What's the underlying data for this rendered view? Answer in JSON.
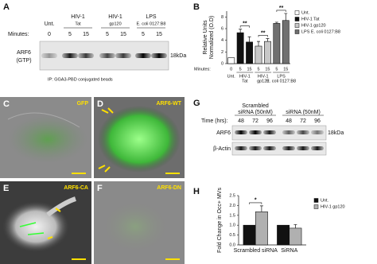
{
  "blot_a": {
    "letter": "A",
    "group_labels": [
      [
        "Unt."
      ],
      [
        "HIV-1",
        "Tat"
      ],
      [
        "HIV-1",
        "gp120"
      ],
      [
        "LPS",
        "E. coli 0127:B8"
      ]
    ],
    "minutes_label": "Minutes:",
    "minutes": [
      0,
      5,
      15,
      5,
      15,
      5,
      15
    ],
    "band_label": [
      "ARF6",
      "(GTP)"
    ],
    "size": "18kDa",
    "caption": "IP: GGA3-PBD conjugated beads"
  },
  "images": [
    {
      "letter": "C",
      "label": "GFP"
    },
    {
      "letter": "D",
      "label": "ARF6-WT"
    },
    {
      "letter": "E",
      "label": "ARF6-CA"
    },
    {
      "letter": "F",
      "label": "ARF6-DN"
    }
  ],
  "blot_g": {
    "letter": "G",
    "groups": [
      [
        "Scrambled",
        "siRNA (50nM)"
      ],
      [
        "siRNA (50nM)"
      ]
    ],
    "time_label": "Time (hrs):",
    "times": [
      48,
      72,
      96,
      48,
      72,
      96
    ],
    "rows": [
      "ARF6",
      "β-Actin"
    ],
    "size": "18kDa"
  },
  "chart_data": [
    {
      "type": "bar",
      "letter": "B",
      "y_label": [
        "Relative Units",
        "Normalized (O.D)"
      ],
      "x_label": "Minutes:",
      "categories": [
        0,
        5,
        15,
        5,
        15,
        5,
        15
      ],
      "groups": [
        [
          "Unt."
        ],
        [
          "HIV-1",
          "Tat"
        ],
        [
          "HIV-1",
          "gp120"
        ],
        [
          "LPS",
          "E. coli 0127:B8"
        ]
      ],
      "ylim": [
        0,
        9
      ],
      "yticks": [
        0,
        2,
        4,
        6,
        8
      ],
      "legend": "upper right",
      "annotations": [
        "**",
        "**",
        "**"
      ],
      "series": [
        {
          "name": "Unt.",
          "color": "#ffffff",
          "values": [
            1.0,
            null,
            null,
            null,
            null,
            null,
            null
          ]
        },
        {
          "name": "HIV-1 Tat",
          "color": "#111111",
          "values": [
            null,
            5.3,
            3.7,
            null,
            null,
            null,
            null
          ],
          "errors": [
            null,
            0.6,
            0.9,
            null,
            null,
            null,
            null
          ]
        },
        {
          "name": "HIV-1 gp120",
          "color": "#c8c8c8",
          "values": [
            null,
            null,
            null,
            3.0,
            3.8,
            null,
            null
          ],
          "errors": [
            null,
            null,
            null,
            0.8,
            0.5,
            null,
            null
          ]
        },
        {
          "name": "LPS E. coli 0127:B8",
          "color": "#707070",
          "values": [
            null,
            null,
            null,
            null,
            null,
            6.9,
            7.4
          ],
          "errors": [
            null,
            null,
            null,
            null,
            null,
            0.2,
            1.2
          ]
        }
      ]
    },
    {
      "type": "bar",
      "letter": "H",
      "y_label": [
        "Fold Change in Occ+ MVs"
      ],
      "categories": [
        "Scrambled siRNA",
        "SiRNA"
      ],
      "ylim": [
        0,
        2.5
      ],
      "yticks": [
        {
          "value": 0,
          "label": "0.0"
        },
        {
          "value": 0.5,
          "label": "0.5"
        },
        {
          "value": 1,
          "label": "1.0"
        },
        {
          "value": 1.5,
          "label": "1.5"
        },
        {
          "value": 2,
          "label": "2.0"
        },
        {
          "value": 2.5,
          "label": "2.5"
        }
      ],
      "legend": "upper right",
      "annotations": [
        "*"
      ],
      "series": [
        {
          "name": "Unt.",
          "color": "#111111",
          "values": [
            1.0,
            1.0
          ]
        },
        {
          "name": "HIV-1 gp120",
          "color": "#b0b0b0",
          "values": [
            1.68,
            0.85
          ],
          "errors": [
            0.3,
            0.18
          ]
        }
      ]
    }
  ]
}
